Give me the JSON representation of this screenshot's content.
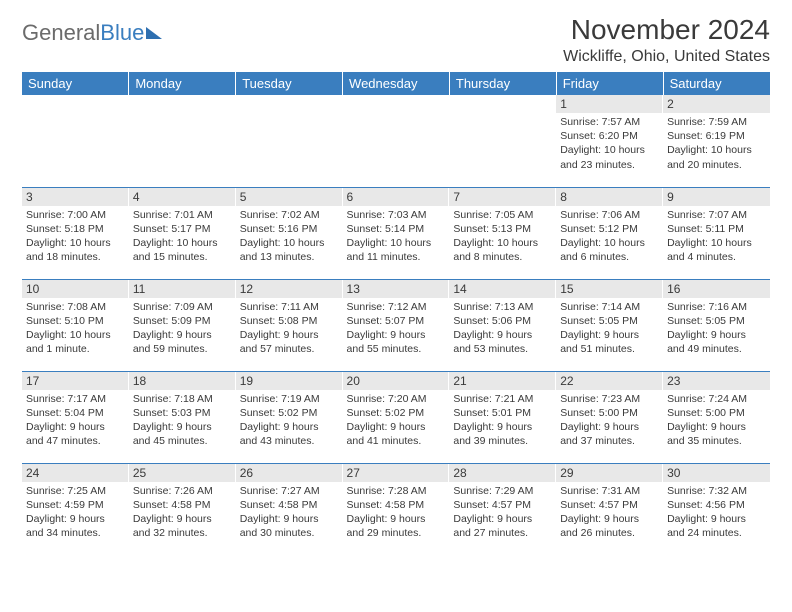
{
  "logo": {
    "word1": "General",
    "word2": "Blue"
  },
  "title": "November 2024",
  "subtitle": "Wickliffe, Ohio, United States",
  "colors": {
    "header_bg": "#3a7ebf",
    "header_text": "#ffffff",
    "daynum_bg": "#e8e8e8",
    "text": "#3a3a3a",
    "rule": "#3a7ebf"
  },
  "weekdays": [
    "Sunday",
    "Monday",
    "Tuesday",
    "Wednesday",
    "Thursday",
    "Friday",
    "Saturday"
  ],
  "weeks": [
    [
      {
        "n": "",
        "sr": "",
        "ss": "",
        "dl": ""
      },
      {
        "n": "",
        "sr": "",
        "ss": "",
        "dl": ""
      },
      {
        "n": "",
        "sr": "",
        "ss": "",
        "dl": ""
      },
      {
        "n": "",
        "sr": "",
        "ss": "",
        "dl": ""
      },
      {
        "n": "",
        "sr": "",
        "ss": "",
        "dl": ""
      },
      {
        "n": "1",
        "sr": "Sunrise: 7:57 AM",
        "ss": "Sunset: 6:20 PM",
        "dl": "Daylight: 10 hours and 23 minutes."
      },
      {
        "n": "2",
        "sr": "Sunrise: 7:59 AM",
        "ss": "Sunset: 6:19 PM",
        "dl": "Daylight: 10 hours and 20 minutes."
      }
    ],
    [
      {
        "n": "3",
        "sr": "Sunrise: 7:00 AM",
        "ss": "Sunset: 5:18 PM",
        "dl": "Daylight: 10 hours and 18 minutes."
      },
      {
        "n": "4",
        "sr": "Sunrise: 7:01 AM",
        "ss": "Sunset: 5:17 PM",
        "dl": "Daylight: 10 hours and 15 minutes."
      },
      {
        "n": "5",
        "sr": "Sunrise: 7:02 AM",
        "ss": "Sunset: 5:16 PM",
        "dl": "Daylight: 10 hours and 13 minutes."
      },
      {
        "n": "6",
        "sr": "Sunrise: 7:03 AM",
        "ss": "Sunset: 5:14 PM",
        "dl": "Daylight: 10 hours and 11 minutes."
      },
      {
        "n": "7",
        "sr": "Sunrise: 7:05 AM",
        "ss": "Sunset: 5:13 PM",
        "dl": "Daylight: 10 hours and 8 minutes."
      },
      {
        "n": "8",
        "sr": "Sunrise: 7:06 AM",
        "ss": "Sunset: 5:12 PM",
        "dl": "Daylight: 10 hours and 6 minutes."
      },
      {
        "n": "9",
        "sr": "Sunrise: 7:07 AM",
        "ss": "Sunset: 5:11 PM",
        "dl": "Daylight: 10 hours and 4 minutes."
      }
    ],
    [
      {
        "n": "10",
        "sr": "Sunrise: 7:08 AM",
        "ss": "Sunset: 5:10 PM",
        "dl": "Daylight: 10 hours and 1 minute."
      },
      {
        "n": "11",
        "sr": "Sunrise: 7:09 AM",
        "ss": "Sunset: 5:09 PM",
        "dl": "Daylight: 9 hours and 59 minutes."
      },
      {
        "n": "12",
        "sr": "Sunrise: 7:11 AM",
        "ss": "Sunset: 5:08 PM",
        "dl": "Daylight: 9 hours and 57 minutes."
      },
      {
        "n": "13",
        "sr": "Sunrise: 7:12 AM",
        "ss": "Sunset: 5:07 PM",
        "dl": "Daylight: 9 hours and 55 minutes."
      },
      {
        "n": "14",
        "sr": "Sunrise: 7:13 AM",
        "ss": "Sunset: 5:06 PM",
        "dl": "Daylight: 9 hours and 53 minutes."
      },
      {
        "n": "15",
        "sr": "Sunrise: 7:14 AM",
        "ss": "Sunset: 5:05 PM",
        "dl": "Daylight: 9 hours and 51 minutes."
      },
      {
        "n": "16",
        "sr": "Sunrise: 7:16 AM",
        "ss": "Sunset: 5:05 PM",
        "dl": "Daylight: 9 hours and 49 minutes."
      }
    ],
    [
      {
        "n": "17",
        "sr": "Sunrise: 7:17 AM",
        "ss": "Sunset: 5:04 PM",
        "dl": "Daylight: 9 hours and 47 minutes."
      },
      {
        "n": "18",
        "sr": "Sunrise: 7:18 AM",
        "ss": "Sunset: 5:03 PM",
        "dl": "Daylight: 9 hours and 45 minutes."
      },
      {
        "n": "19",
        "sr": "Sunrise: 7:19 AM",
        "ss": "Sunset: 5:02 PM",
        "dl": "Daylight: 9 hours and 43 minutes."
      },
      {
        "n": "20",
        "sr": "Sunrise: 7:20 AM",
        "ss": "Sunset: 5:02 PM",
        "dl": "Daylight: 9 hours and 41 minutes."
      },
      {
        "n": "21",
        "sr": "Sunrise: 7:21 AM",
        "ss": "Sunset: 5:01 PM",
        "dl": "Daylight: 9 hours and 39 minutes."
      },
      {
        "n": "22",
        "sr": "Sunrise: 7:23 AM",
        "ss": "Sunset: 5:00 PM",
        "dl": "Daylight: 9 hours and 37 minutes."
      },
      {
        "n": "23",
        "sr": "Sunrise: 7:24 AM",
        "ss": "Sunset: 5:00 PM",
        "dl": "Daylight: 9 hours and 35 minutes."
      }
    ],
    [
      {
        "n": "24",
        "sr": "Sunrise: 7:25 AM",
        "ss": "Sunset: 4:59 PM",
        "dl": "Daylight: 9 hours and 34 minutes."
      },
      {
        "n": "25",
        "sr": "Sunrise: 7:26 AM",
        "ss": "Sunset: 4:58 PM",
        "dl": "Daylight: 9 hours and 32 minutes."
      },
      {
        "n": "26",
        "sr": "Sunrise: 7:27 AM",
        "ss": "Sunset: 4:58 PM",
        "dl": "Daylight: 9 hours and 30 minutes."
      },
      {
        "n": "27",
        "sr": "Sunrise: 7:28 AM",
        "ss": "Sunset: 4:58 PM",
        "dl": "Daylight: 9 hours and 29 minutes."
      },
      {
        "n": "28",
        "sr": "Sunrise: 7:29 AM",
        "ss": "Sunset: 4:57 PM",
        "dl": "Daylight: 9 hours and 27 minutes."
      },
      {
        "n": "29",
        "sr": "Sunrise: 7:31 AM",
        "ss": "Sunset: 4:57 PM",
        "dl": "Daylight: 9 hours and 26 minutes."
      },
      {
        "n": "30",
        "sr": "Sunrise: 7:32 AM",
        "ss": "Sunset: 4:56 PM",
        "dl": "Daylight: 9 hours and 24 minutes."
      }
    ]
  ]
}
